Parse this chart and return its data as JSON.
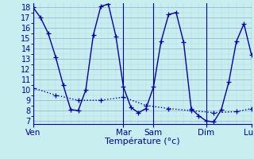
{
  "xlabel": "Température (°c)",
  "bg_color": "#c8eef0",
  "line_color": "#0000aa",
  "grid_major_color": "#9ab8cc",
  "grid_minor_color": "#b8d4e0",
  "ylim": [
    6.7,
    18.4
  ],
  "yticks": [
    7,
    8,
    9,
    10,
    11,
    12,
    13,
    14,
    15,
    16,
    17,
    18
  ],
  "day_labels": [
    "Ven",
    "Mar",
    "Sam",
    "Dim",
    "Lun"
  ],
  "day_positions": [
    0,
    12,
    16,
    23,
    29
  ],
  "vline_positions": [
    0,
    12,
    16,
    23,
    29
  ],
  "line1_x": [
    0,
    1,
    2,
    3,
    4,
    5,
    6,
    7,
    8,
    9,
    10,
    11,
    12,
    13,
    14,
    15,
    16,
    17,
    18,
    19,
    20,
    21,
    22,
    23,
    24,
    25,
    26,
    27,
    28,
    29
  ],
  "line1_y": [
    18,
    17,
    15.5,
    13.2,
    10.5,
    8.1,
    8.0,
    10.0,
    15.3,
    18.1,
    18.3,
    15.2,
    10.3,
    8.3,
    7.8,
    8.2,
    10.3,
    14.7,
    17.3,
    17.5,
    14.6,
    8.2,
    7.5,
    7.0,
    6.9,
    8.1,
    10.8,
    14.7,
    16.4,
    13.4
  ],
  "line2_x": [
    0,
    3,
    6,
    9,
    12,
    15,
    18,
    21,
    24,
    27,
    29
  ],
  "line2_y": [
    10.2,
    9.5,
    9.0,
    9.0,
    9.3,
    8.5,
    8.2,
    8.0,
    7.8,
    7.9,
    8.2
  ],
  "xlim": [
    0,
    29
  ]
}
